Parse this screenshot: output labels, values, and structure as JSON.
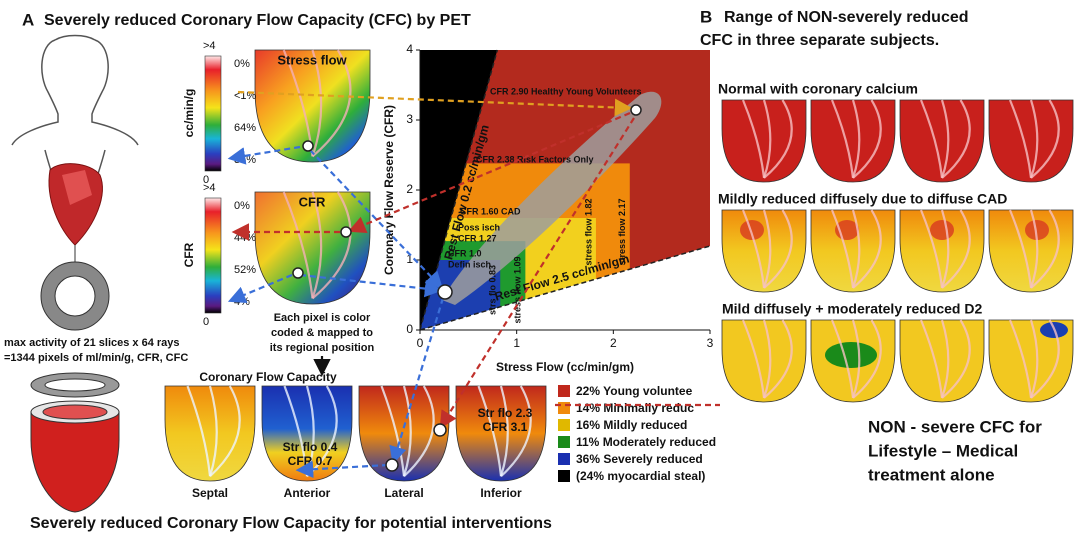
{
  "panel_a": {
    "letter": "A",
    "title": "Severely reduced Coronary Flow Capacity (CFC) by PET",
    "stress_map": {
      "title": "Stress flow",
      "unit": "cc/min/g",
      "scale_top": ">4",
      "scale_bottom": "0",
      "labels": [
        "0%",
        "<1%",
        "64%",
        "36%"
      ]
    },
    "cfr_map": {
      "title": "CFR",
      "unit": "CFR",
      "scale_top": ">4",
      "scale_bottom": "0",
      "labels": [
        "0%",
        "44%",
        "52%",
        "4%"
      ]
    },
    "pixel_note": [
      "Each pixel is color",
      "coded & mapped to",
      "its regional position"
    ],
    "slices_note": [
      "max activity of 21 slices x 64 rays",
      "=1344 pixels of ml/min/g, CFR, CFC"
    ],
    "cfc_title": "Coronary Flow Capacity",
    "views": [
      "Septal",
      "Anterior",
      "Lateral",
      "Inferior"
    ],
    "annotations": [
      [
        "Str flo 0.4",
        "CFR 0.7"
      ],
      [
        "Str flo 2.3",
        "CFR 3.1"
      ]
    ],
    "legend": [
      {
        "label": "22% Young voluntee",
        "color": "#c0281c"
      },
      {
        "label": "14% Minimally reduc",
        "color": "#f08a0c"
      },
      {
        "label": "16% Mildly reduced",
        "color": "#e0b800"
      },
      {
        "label": "11% Moderately reduced",
        "color": "#1a8a1a"
      },
      {
        "label": "36% Severely reduced",
        "color": "#1a2fb0"
      },
      {
        "label": "(24% myocardial steal)",
        "color": "#000000",
        "text_color": "#1a2fb0"
      }
    ],
    "footer": "Severely reduced Coronary Flow Capacity for potential interventions"
  },
  "chart_data": {
    "type": "scatter",
    "x_label": "Stress Flow (cc/min/gm)",
    "y_label": "Coronary Flow Reserve (CFR)",
    "xlim": [
      0,
      3
    ],
    "ylim": [
      0,
      4
    ],
    "xticks": [
      0,
      1,
      2,
      3
    ],
    "yticks": [
      0,
      1,
      2,
      3,
      4
    ],
    "zones": [
      {
        "label": [
          "CFR 2.90 Healthy Young Volunteers"
        ],
        "color": "#b32a1e"
      },
      {
        "label": [
          "CFR 2.38 Risk Factors Only"
        ],
        "cfr": 2.38,
        "stress": 2.17,
        "color": "#f08a0c",
        "stress_label": "stress flow 2.17"
      },
      {
        "label": [
          "CFR 1.60 CAD"
        ],
        "cfr": 1.6,
        "stress": 1.82,
        "color": "#f2d01e",
        "stress_label": "stress flow 1.82"
      },
      {
        "label": [
          "Poss isch",
          "CFR 1.27"
        ],
        "cfr": 1.27,
        "stress": 1.09,
        "color": "#1f9a2e",
        "stress_label": "stress flow 1.09"
      },
      {
        "label": [
          "CFR 1.0",
          "Defin isch"
        ],
        "cfr": 1.0,
        "stress": 0.83,
        "color": "#1c3fb0",
        "stress_label": "strs flo 0.83"
      }
    ],
    "rest_flow_lines": [
      {
        "rest": 0.2,
        "label": "Rest Flow 0.2 cc/min/gm",
        "fill": "#000000",
        "text_color": "#ffffff"
      },
      {
        "rest": 2.5,
        "label": "Rest Flow 2.5 cc/min/gm",
        "fill": "#ffffff",
        "text_color": "#111111"
      }
    ]
  },
  "panel_b": {
    "letter": "B",
    "title": [
      "Range of NON-severely reduced",
      "CFC in three separate subjects."
    ],
    "rows": [
      "Normal with coronary calcium",
      "Mildly reduced diffusely due to diffuse CAD",
      "Mild diffusely + moderately reduced D2"
    ],
    "conclusion": [
      "NON - severe CFC for",
      "Lifestyle – Medical",
      "treatment alone"
    ]
  }
}
